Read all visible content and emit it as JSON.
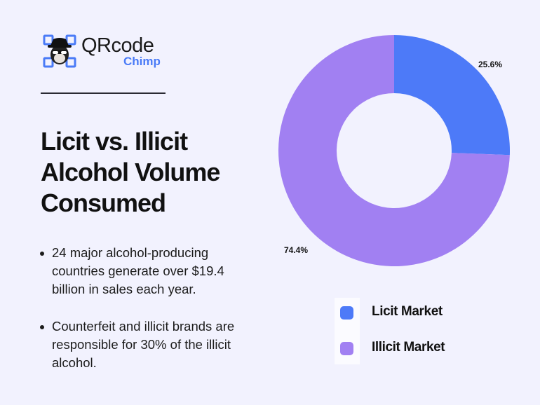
{
  "brand": {
    "name": "QRcode",
    "sub": "Chimp",
    "accent": "#4a7bf7"
  },
  "title": "Licit vs. Illicit Alcohol Volume Consumed",
  "title_lines": [
    "Licit vs. Illicit",
    "Alcohol Volume",
    "Consumed"
  ],
  "bullets": [
    "24 major alcohol-producing countries generate over $19.4 billion in sales each year.",
    "Counterfeit and illicit brands are responsible for 30% of the illicit alcohol."
  ],
  "chart_data": {
    "type": "pie",
    "subtype": "donut",
    "title": "Licit vs. Illicit Alcohol Volume Consumed",
    "categories": [
      "Licit Market",
      "Illicit Market"
    ],
    "values": [
      25.6,
      74.4
    ],
    "labels": [
      "25.6%",
      "74.4%"
    ],
    "colors": [
      "#4d7af8",
      "#a180f2"
    ],
    "legend_position": "bottom"
  },
  "legend": [
    {
      "label": "Licit Market",
      "color": "#4d7af8"
    },
    {
      "label": "Illicit Market",
      "color": "#a180f2"
    }
  ]
}
